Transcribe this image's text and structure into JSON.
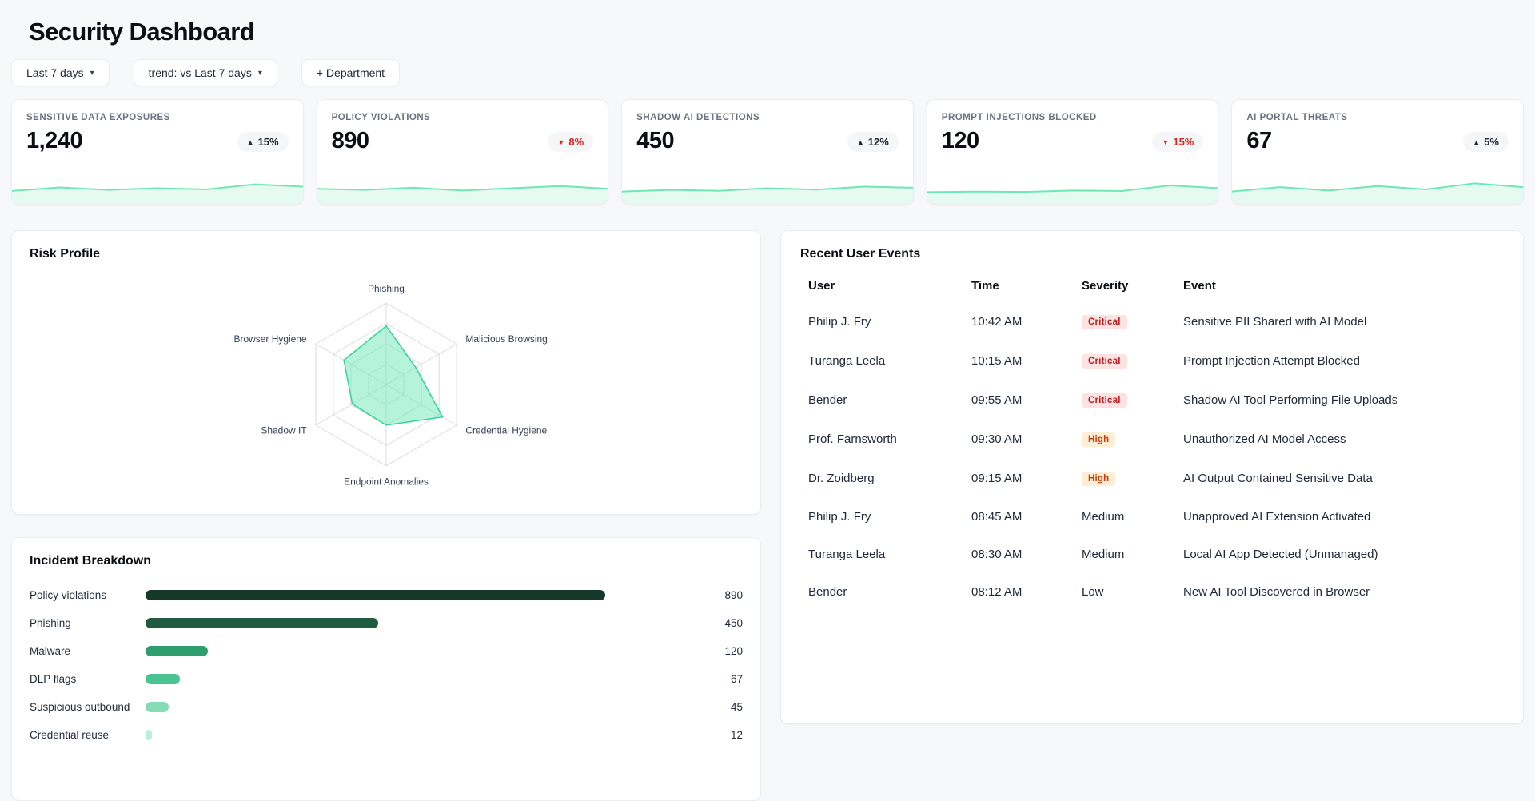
{
  "page": {
    "title": "Security Dashboard"
  },
  "filters": {
    "date_range": "Last 7 days",
    "trend": "trend: vs Last 7 days",
    "add_department": "+ Department"
  },
  "kpis": [
    {
      "label": "SENSITIVE DATA EXPOSURES",
      "value": "1,240",
      "trend": "15%",
      "direction": "up"
    },
    {
      "label": "POLICY VIOLATIONS",
      "value": "890",
      "trend": "8%",
      "direction": "down"
    },
    {
      "label": "SHADOW AI DETECTIONS",
      "value": "450",
      "trend": "12%",
      "direction": "up"
    },
    {
      "label": "PROMPT INJECTIONS BLOCKED",
      "value": "120",
      "trend": "15%",
      "direction": "down"
    },
    {
      "label": "AI PORTAL THREATS",
      "value": "67",
      "trend": "5%",
      "direction": "up"
    }
  ],
  "panels": {
    "risk_profile_title": "Risk Profile",
    "incident_breakdown_title": "Incident Breakdown",
    "events_title": "Recent User Events"
  },
  "events": {
    "columns": [
      "User",
      "Time",
      "Severity",
      "Event"
    ],
    "rows": [
      {
        "user": "Philip J. Fry",
        "time": "10:42 AM",
        "severity": "Critical",
        "event": "Sensitive PII Shared with AI Model"
      },
      {
        "user": "Turanga Leela",
        "time": "10:15 AM",
        "severity": "Critical",
        "event": "Prompt Injection Attempt Blocked"
      },
      {
        "user": "Bender",
        "time": "09:55 AM",
        "severity": "Critical",
        "event": "Shadow AI Tool Performing File Uploads"
      },
      {
        "user": "Prof. Farnsworth",
        "time": "09:30 AM",
        "severity": "High",
        "event": "Unauthorized AI Model Access"
      },
      {
        "user": "Dr. Zoidberg",
        "time": "09:15 AM",
        "severity": "High",
        "event": "AI Output Contained Sensitive Data"
      },
      {
        "user": "Philip J. Fry",
        "time": "08:45 AM",
        "severity": "Medium",
        "event": "Unapproved AI Extension Activated"
      },
      {
        "user": "Turanga Leela",
        "time": "08:30 AM",
        "severity": "Medium",
        "event": "Local AI App Detected (Unmanaged)"
      },
      {
        "user": "Bender",
        "time": "08:12 AM",
        "severity": "Low",
        "event": "New AI Tool Discovered in Browser"
      }
    ]
  },
  "colors": {
    "page_bg": "#f7f8f9",
    "spark_stroke": "#6ee7b7",
    "trend_up_text": "#1f2937",
    "trend_down_text": "#dc2626",
    "radar_fill": "rgba(110,231,183,0.5)",
    "radar_stroke": "#34d399",
    "severity": {
      "Critical": {
        "bg": "#fee2e2",
        "text": "#b91c1c"
      },
      "High": {
        "bg": "#ffedd5",
        "text": "#c2410c"
      }
    },
    "bar_colors": [
      "#16382b",
      "#1f5a41",
      "#2f9e6e",
      "#4cc392",
      "#85dcb6",
      "#bceed8"
    ]
  },
  "chart_data": [
    {
      "type": "radar",
      "title": "Risk Profile",
      "axes": [
        "Phishing",
        "Malicious Browsing",
        "Credential Hygiene",
        "Endpoint Anomalies",
        "Shadow IT",
        "Browser Hygiene"
      ],
      "values": [
        72,
        42,
        80,
        50,
        48,
        60
      ],
      "max": 100,
      "grid_levels": 4,
      "grid": true,
      "legend": "none"
    },
    {
      "type": "bar",
      "title": "Incident Breakdown",
      "orientation": "horizontal",
      "categories": [
        "Policy violations",
        "Phishing",
        "Malware",
        "DLP flags",
        "Suspicious outbound",
        "Credential reuse"
      ],
      "values": [
        890,
        450,
        120,
        67,
        45,
        12
      ],
      "xlim": [
        0,
        890
      ],
      "value_labels": true
    },
    {
      "type": "line",
      "title": "KPI sparklines",
      "x": [
        1,
        2,
        3,
        4,
        5,
        6,
        7
      ],
      "series": [
        {
          "name": "Sensitive Data Exposures",
          "values": [
            42,
            55,
            46,
            52,
            48,
            66,
            58
          ]
        },
        {
          "name": "Policy Violations",
          "values": [
            50,
            46,
            54,
            44,
            52,
            60,
            50
          ]
        },
        {
          "name": "Shadow AI Detections",
          "values": [
            40,
            46,
            43,
            52,
            47,
            58,
            54
          ]
        },
        {
          "name": "Prompt Injections Blocked",
          "values": [
            38,
            40,
            39,
            44,
            42,
            62,
            52
          ]
        },
        {
          "name": "AI Portal Threats",
          "values": [
            40,
            56,
            44,
            60,
            48,
            70,
            56
          ]
        }
      ]
    }
  ]
}
